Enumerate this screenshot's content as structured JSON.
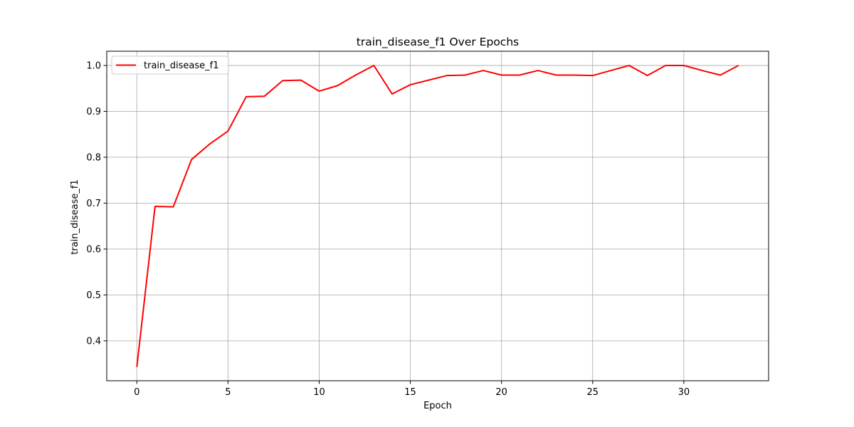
{
  "chart_data": {
    "type": "line",
    "title": "train_disease_f1 Over Epochs",
    "xlabel": "Epoch",
    "ylabel": "train_disease_f1",
    "xlim": [
      -1.65,
      34.65
    ],
    "ylim": [
      0.313,
      1.031
    ],
    "xticks": [
      0,
      5,
      10,
      15,
      20,
      25,
      30
    ],
    "yticks": [
      0.4,
      0.5,
      0.6,
      0.7,
      0.8,
      0.9,
      1.0
    ],
    "ytick_labels": [
      "0.4",
      "0.5",
      "0.6",
      "0.7",
      "0.8",
      "0.9",
      "1.0"
    ],
    "grid": true,
    "legend_position": "upper-left",
    "series": [
      {
        "name": "train_disease_f1",
        "color": "#ff0000",
        "x": [
          0,
          1,
          2,
          3,
          4,
          5,
          6,
          7,
          8,
          9,
          10,
          11,
          12,
          13,
          14,
          15,
          16,
          17,
          18,
          19,
          20,
          21,
          22,
          23,
          24,
          25,
          26,
          27,
          28,
          29,
          30,
          31,
          32,
          33
        ],
        "y": [
          0.343,
          0.693,
          0.692,
          0.795,
          0.829,
          0.857,
          0.932,
          0.933,
          0.967,
          0.968,
          0.944,
          0.956,
          0.979,
          1.0,
          0.938,
          0.958,
          0.968,
          0.978,
          0.979,
          0.989,
          0.979,
          0.979,
          0.989,
          0.979,
          0.979,
          0.978,
          0.989,
          1.0,
          0.978,
          1.0,
          1.0,
          0.989,
          0.979,
          1.0
        ]
      }
    ]
  }
}
